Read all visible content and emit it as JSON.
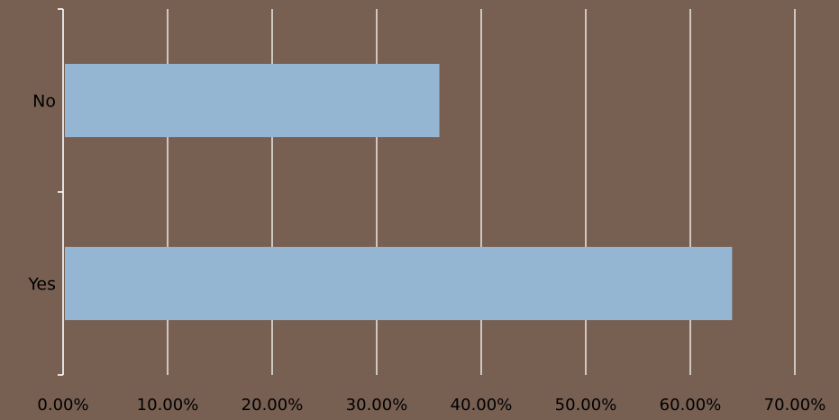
{
  "chart_data": {
    "type": "bar",
    "orientation": "horizontal",
    "categories": [
      "No",
      "Yes"
    ],
    "values": [
      0.36,
      0.64
    ],
    "xlim": [
      0,
      0.7
    ],
    "xticks": [
      0,
      0.1,
      0.2,
      0.3,
      0.4,
      0.5,
      0.6,
      0.7
    ],
    "xtick_labels": [
      "0.00%",
      "10.00%",
      "20.00%",
      "30.00%",
      "40.00%",
      "50.00%",
      "60.00%",
      "70.00%"
    ],
    "grid": true,
    "legend": "none"
  },
  "colors": {
    "background": "#775f52",
    "bar": "#94b6d2",
    "grid": "#ffffff",
    "text": "#000000"
  }
}
